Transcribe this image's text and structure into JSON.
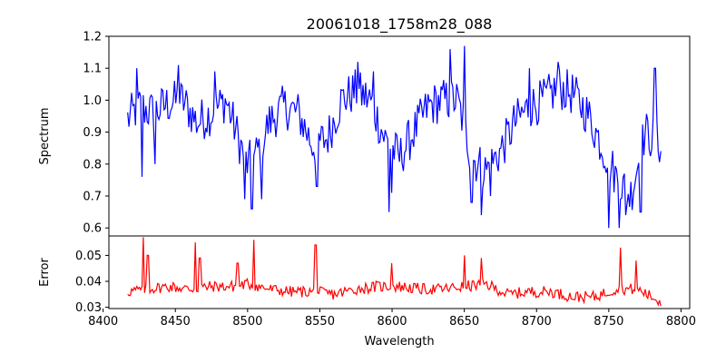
{
  "chart_data": [
    {
      "type": "line",
      "panel": "top",
      "title": "20061018_1758m28_088",
      "xlabel": "",
      "ylabel": "Spectrum",
      "xlim": [
        8404,
        8806
      ],
      "ylim": [
        0.575,
        1.2
      ],
      "xticks": [
        8400,
        8450,
        8500,
        8550,
        8600,
        8650,
        8700,
        8750,
        8800
      ],
      "yticks": [
        0.6,
        0.7,
        0.8,
        0.9,
        1.0,
        1.1,
        1.2
      ],
      "ytick_labels": [
        "0.6",
        "0.7",
        "0.8",
        "0.9",
        "1.0",
        "1.1",
        "1.2"
      ],
      "grid": false,
      "series": [
        {
          "color": "#0000ff",
          "x_start": 8417,
          "x_end": 8786,
          "x": [
            8417,
            8425,
            8435,
            8445,
            8455,
            8465,
            8475,
            8485,
            8495,
            8500,
            8505,
            8515,
            8525,
            8535,
            8545,
            8555,
            8565,
            8575,
            8585,
            8595,
            8605,
            8615,
            8625,
            8635,
            8645,
            8650,
            8655,
            8665,
            8675,
            8685,
            8695,
            8705,
            8715,
            8725,
            8735,
            8745,
            8755,
            8765,
            8775,
            8786
          ],
          "y": [
            0.94,
            0.98,
            0.96,
            0.99,
            1.0,
            0.93,
            0.96,
            1.0,
            0.86,
            0.8,
            0.82,
            0.93,
            0.98,
            0.96,
            0.86,
            0.88,
            1.0,
            1.03,
            1.0,
            0.88,
            0.82,
            0.9,
            0.98,
            1.0,
            1.0,
            0.92,
            0.82,
            0.78,
            0.84,
            0.93,
            0.98,
            1.0,
            1.04,
            1.02,
            0.96,
            0.86,
            0.76,
            0.7,
            0.9,
            0.86
          ],
          "dips": [
            {
              "x": 8427,
              "y": 0.76
            },
            {
              "x": 8436,
              "y": 0.8
            },
            {
              "x": 8498,
              "y": 0.69
            },
            {
              "x": 8503,
              "y": 0.66
            },
            {
              "x": 8510,
              "y": 0.69
            },
            {
              "x": 8548,
              "y": 0.73
            },
            {
              "x": 8598,
              "y": 0.65
            },
            {
              "x": 8600,
              "y": 0.71
            },
            {
              "x": 8655,
              "y": 0.68
            },
            {
              "x": 8662,
              "y": 0.64
            },
            {
              "x": 8668,
              "y": 0.7
            },
            {
              "x": 8750,
              "y": 0.6
            },
            {
              "x": 8757,
              "y": 0.6
            },
            {
              "x": 8762,
              "y": 0.64
            },
            {
              "x": 8772,
              "y": 0.65
            }
          ],
          "peaks": [
            {
              "x": 8423,
              "y": 1.1
            },
            {
              "x": 8452,
              "y": 1.11
            },
            {
              "x": 8477,
              "y": 1.09
            },
            {
              "x": 8576,
              "y": 1.12
            },
            {
              "x": 8587,
              "y": 1.09
            },
            {
              "x": 8640,
              "y": 1.16
            },
            {
              "x": 8650,
              "y": 1.17
            },
            {
              "x": 8695,
              "y": 1.1
            },
            {
              "x": 8715,
              "y": 1.12
            },
            {
              "x": 8782,
              "y": 1.1
            }
          ]
        }
      ]
    },
    {
      "type": "line",
      "panel": "bottom",
      "xlabel": "Wavelength",
      "ylabel": "Error",
      "xlim": [
        8404,
        8806
      ],
      "ylim": [
        0.0295,
        0.0575
      ],
      "xticks": [
        8400,
        8450,
        8500,
        8550,
        8600,
        8650,
        8700,
        8750,
        8800
      ],
      "yticks": [
        0.03,
        0.04,
        0.05
      ],
      "ytick_labels": [
        "0.03",
        "0.04",
        "0.05"
      ],
      "grid": false,
      "series": [
        {
          "color": "#ff0000",
          "x_start": 8417,
          "x_end": 8786,
          "x": [
            8417,
            8430,
            8445,
            8460,
            8475,
            8490,
            8500,
            8515,
            8530,
            8545,
            8560,
            8575,
            8590,
            8605,
            8620,
            8635,
            8650,
            8665,
            8680,
            8695,
            8710,
            8725,
            8740,
            8755,
            8770,
            8786
          ],
          "y": [
            0.036,
            0.037,
            0.038,
            0.037,
            0.038,
            0.038,
            0.039,
            0.037,
            0.036,
            0.036,
            0.035,
            0.037,
            0.038,
            0.038,
            0.037,
            0.037,
            0.038,
            0.039,
            0.035,
            0.036,
            0.036,
            0.034,
            0.034,
            0.037,
            0.037,
            0.032
          ],
          "spikes": [
            {
              "x": 8428,
              "y": 0.057
            },
            {
              "x": 8431,
              "y": 0.05
            },
            {
              "x": 8464,
              "y": 0.055
            },
            {
              "x": 8467,
              "y": 0.049
            },
            {
              "x": 8493,
              "y": 0.047
            },
            {
              "x": 8504,
              "y": 0.056
            },
            {
              "x": 8547,
              "y": 0.054
            },
            {
              "x": 8600,
              "y": 0.047
            },
            {
              "x": 8650,
              "y": 0.05
            },
            {
              "x": 8662,
              "y": 0.049
            },
            {
              "x": 8758,
              "y": 0.053
            },
            {
              "x": 8769,
              "y": 0.048
            }
          ]
        }
      ]
    }
  ]
}
